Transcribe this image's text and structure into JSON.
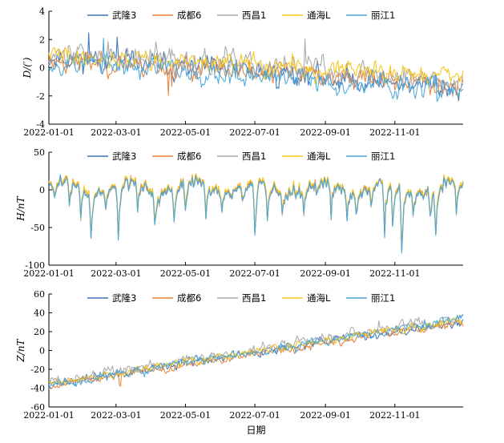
{
  "chart_data": [
    {
      "type": "line",
      "ylabel": "D/(′)",
      "ylim": [
        -4,
        4
      ],
      "yticks": [
        -4,
        -2,
        0,
        2,
        4
      ],
      "xticks": [
        "2022-01-01",
        "2022-03-01",
        "2022-05-01",
        "2022-07-01",
        "2022-09-01",
        "2022-11-01"
      ],
      "n_days": 365,
      "series": [
        {
          "name": "武隆3",
          "color": "#3a74b8",
          "trend_start": 0.8,
          "trend_end": -1.4,
          "noise": 0.35,
          "seed": 11,
          "spikes": [
            [
              35,
              2.0
            ],
            [
              60,
              1.6
            ],
            [
              200,
              -0.7
            ],
            [
              360,
              -0.9
            ]
          ]
        },
        {
          "name": "成都6",
          "color": "#e8843a",
          "trend_start": 0.6,
          "trend_end": -1.2,
          "noise": 0.32,
          "seed": 23,
          "spikes": [
            [
              105,
              -1.8
            ],
            [
              108,
              -1.5
            ],
            [
              240,
              -0.6
            ]
          ]
        },
        {
          "name": "西昌1",
          "color": "#a9a9a9",
          "trend_start": 1.1,
          "trend_end": -0.9,
          "noise": 0.38,
          "seed": 37,
          "spikes": [
            [
              128,
              1.5
            ],
            [
              225,
              2.0
            ],
            [
              355,
              -1.2
            ]
          ]
        },
        {
          "name": "通海L",
          "color": "#f5c518",
          "trend_start": 0.9,
          "trend_end": -0.6,
          "noise": 0.3,
          "seed": 41,
          "spikes": [
            [
              85,
              0.9
            ],
            [
              300,
              0.7
            ]
          ]
        },
        {
          "name": "丽江1",
          "color": "#4aa7d8",
          "trend_start": 0.5,
          "trend_end": -1.7,
          "noise": 0.34,
          "seed": 53,
          "spikes": [
            [
              48,
              1.2
            ],
            [
              165,
              1.3
            ],
            [
              340,
              1.1
            ]
          ]
        }
      ]
    },
    {
      "type": "line",
      "ylabel": "H/nT",
      "ylim": [
        -100,
        50
      ],
      "yticks": [
        -100,
        -50,
        0,
        50
      ],
      "xticks": [
        "2022-01-01",
        "2022-03-01",
        "2022-05-01",
        "2022-07-01",
        "2022-09-01",
        "2022-11-01"
      ],
      "n_days": 365,
      "storms": [
        [
          5,
          -28
        ],
        [
          18,
          -30
        ],
        [
          28,
          -38
        ],
        [
          37,
          -60
        ],
        [
          50,
          -25
        ],
        [
          61,
          -68
        ],
        [
          78,
          -30
        ],
        [
          93,
          -45
        ],
        [
          110,
          -38
        ],
        [
          120,
          -28
        ],
        [
          138,
          -35
        ],
        [
          152,
          -25
        ],
        [
          170,
          -20
        ],
        [
          181,
          -68
        ],
        [
          192,
          -40
        ],
        [
          205,
          -25
        ],
        [
          224,
          -30
        ],
        [
          235,
          -22
        ],
        [
          248,
          -42
        ],
        [
          262,
          -35
        ],
        [
          270,
          -28
        ],
        [
          283,
          -25
        ],
        [
          295,
          -72
        ],
        [
          302,
          -60
        ],
        [
          310,
          -88
        ],
        [
          320,
          -30
        ],
        [
          335,
          -40
        ],
        [
          340,
          -65
        ],
        [
          358,
          -45
        ]
      ],
      "series": [
        {
          "name": "武隆3",
          "color": "#3a74b8",
          "offset": 0,
          "seed": 61
        },
        {
          "name": "成都6",
          "color": "#e8843a",
          "offset": 1.5,
          "seed": 62
        },
        {
          "name": "西昌1",
          "color": "#a9a9a9",
          "offset": -1.5,
          "seed": 63
        },
        {
          "name": "通海L",
          "color": "#f5c518",
          "offset": 2.5,
          "seed": 64
        },
        {
          "name": "丽江1",
          "color": "#4aa7d8",
          "offset": -0.8,
          "seed": 65
        }
      ]
    },
    {
      "type": "line",
      "ylabel": "Z/nT",
      "xlabel": "日期",
      "ylim": [
        -60,
        60
      ],
      "yticks": [
        -60,
        -40,
        -20,
        0,
        20,
        40,
        60
      ],
      "xticks": [
        "2022-01-01",
        "2022-03-01",
        "2022-05-01",
        "2022-07-01",
        "2022-09-01",
        "2022-11-01"
      ],
      "n_days": 365,
      "series": [
        {
          "name": "武隆3",
          "color": "#3a74b8",
          "trend_start": -36,
          "trend_end": 32,
          "noise": 2.2,
          "seed": 71,
          "spikes": [
            [
              20,
              5
            ],
            [
              305,
              4
            ]
          ]
        },
        {
          "name": "成都6",
          "color": "#e8843a",
          "trend_start": -38,
          "trend_end": 31,
          "noise": 2.0,
          "seed": 72,
          "spikes": [
            [
              62,
              -12
            ],
            [
              63,
              -14
            ],
            [
              120,
              4
            ]
          ]
        },
        {
          "name": "西昌1",
          "color": "#a9a9a9",
          "trend_start": -34,
          "trend_end": 37,
          "noise": 2.6,
          "seed": 73,
          "spikes": [
            [
              180,
              6
            ],
            [
              240,
              5
            ],
            [
              290,
              6
            ]
          ]
        },
        {
          "name": "通海L",
          "color": "#f5c518",
          "trend_start": -35,
          "trend_end": 33,
          "noise": 2.0,
          "seed": 74,
          "spikes": [
            [
              150,
              4
            ]
          ]
        },
        {
          "name": "丽江1",
          "color": "#4aa7d8",
          "trend_start": -37,
          "trend_end": 34,
          "noise": 2.3,
          "seed": 75,
          "spikes": [
            [
              45,
              5
            ],
            [
              330,
              4
            ]
          ]
        }
      ]
    }
  ]
}
